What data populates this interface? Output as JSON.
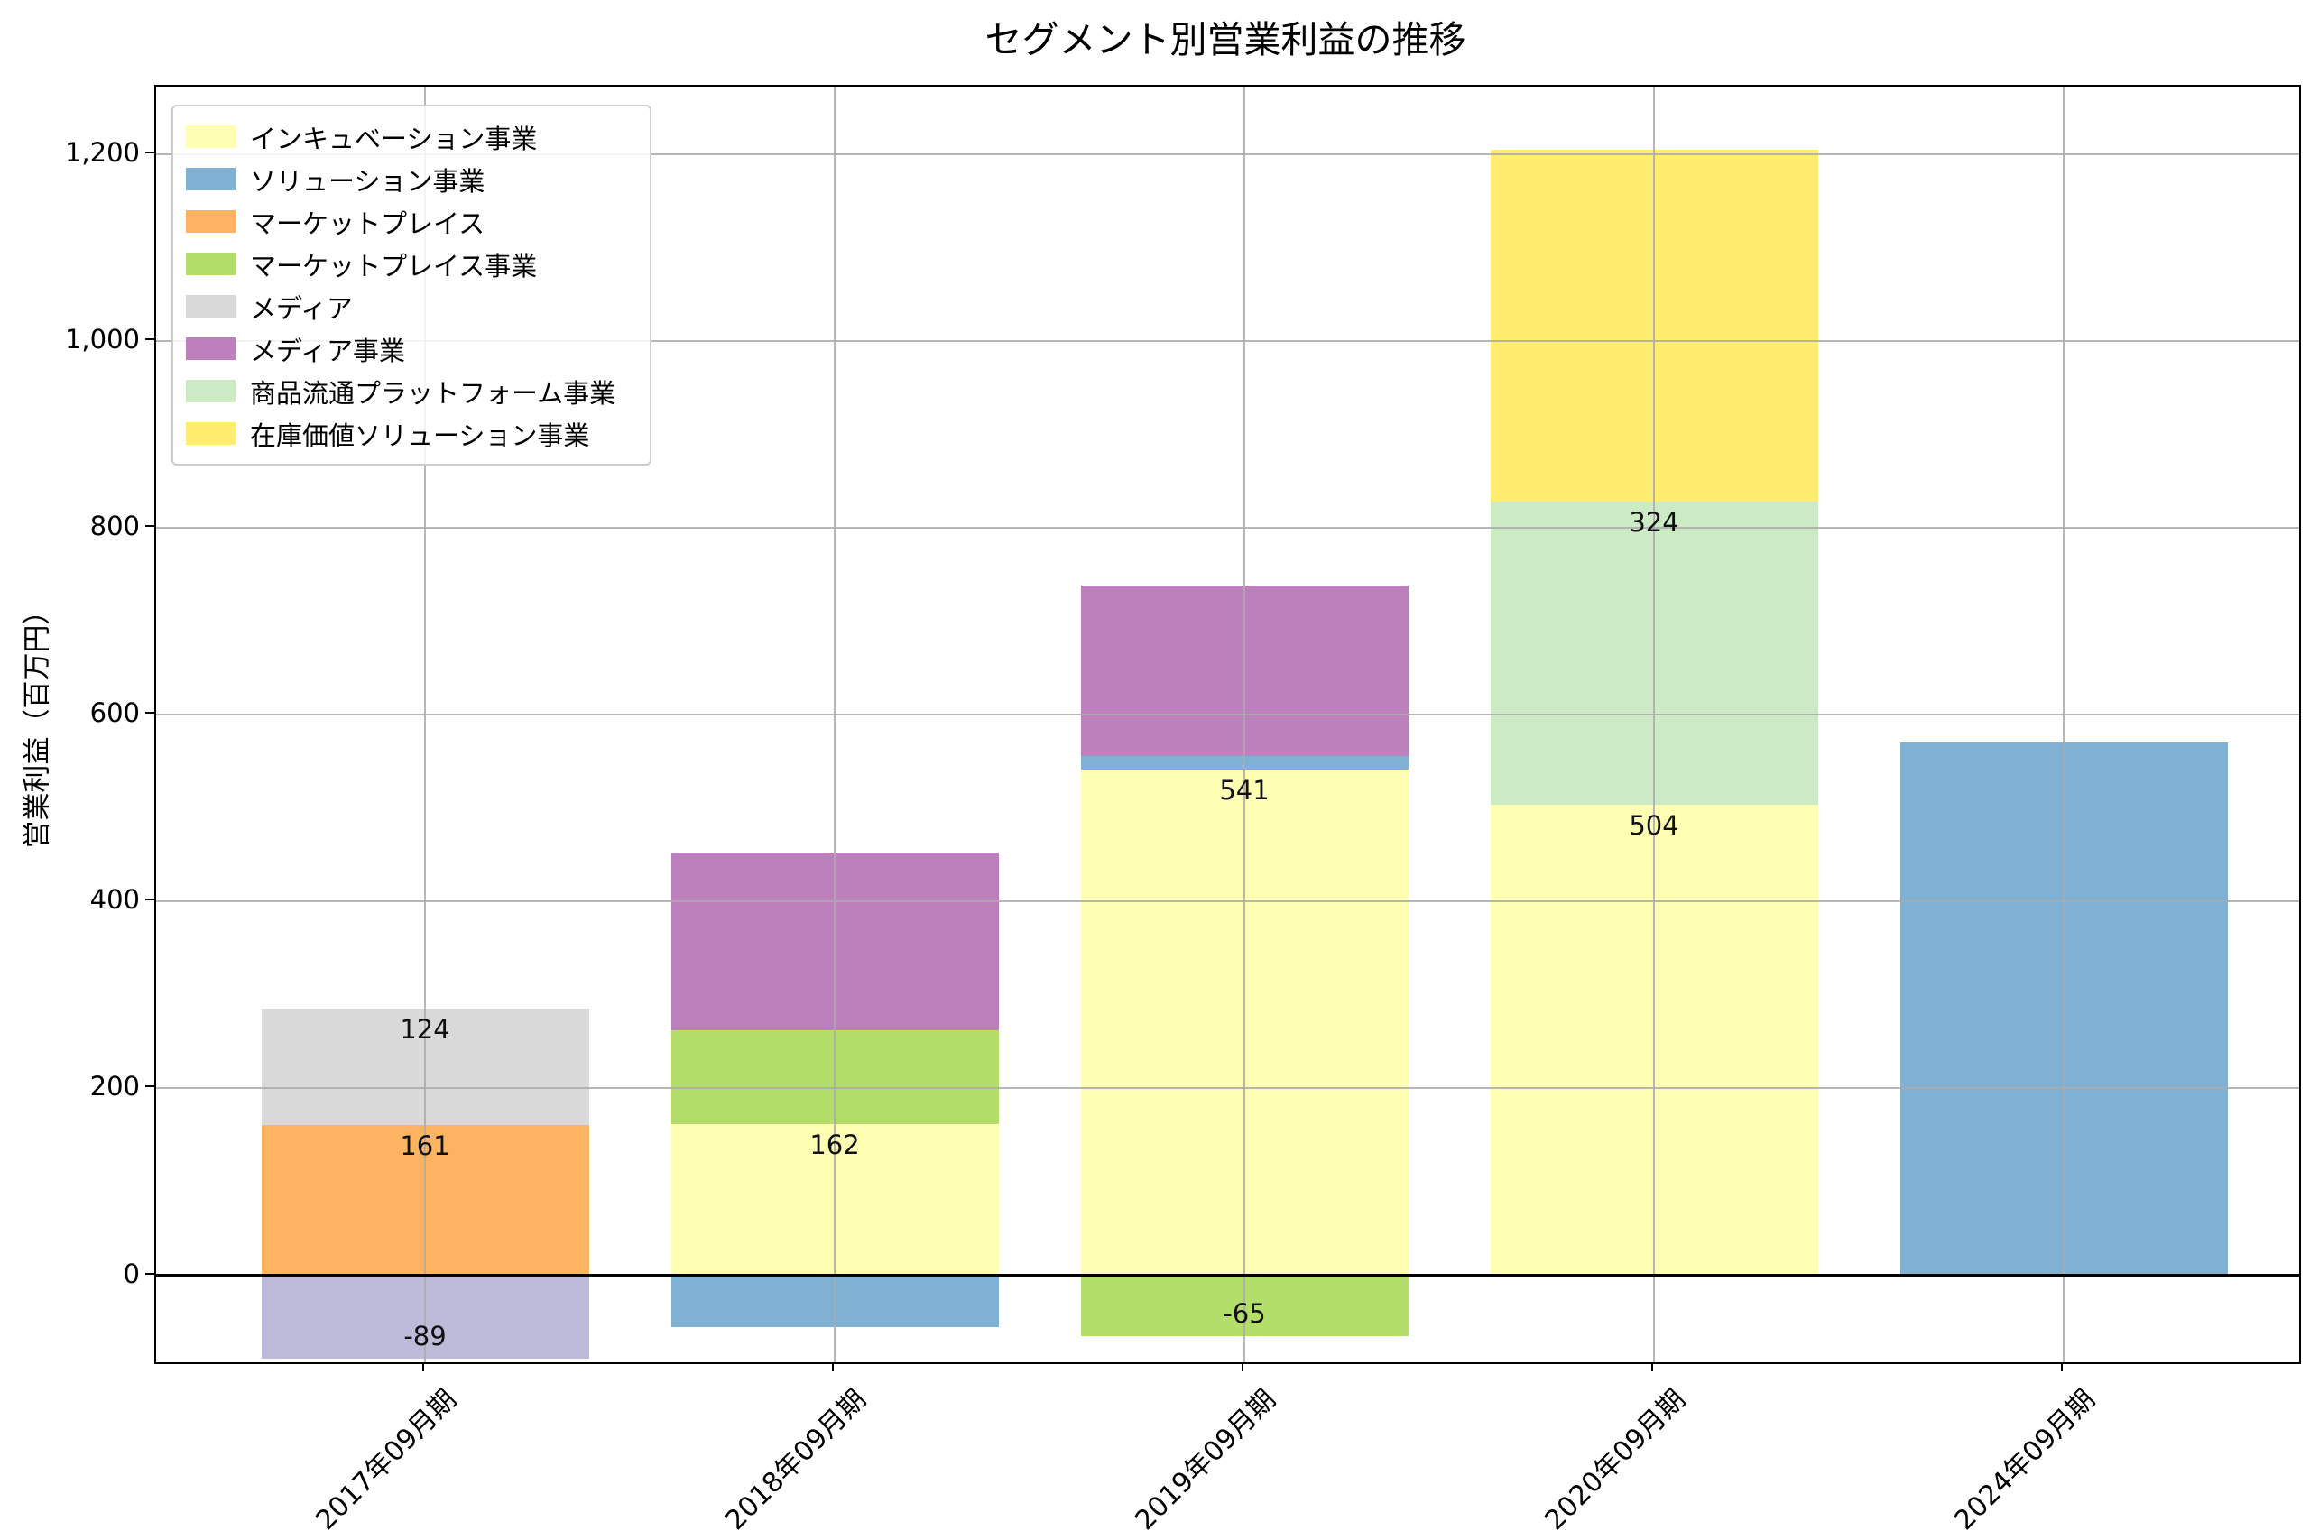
{
  "figure": {
    "title": "セグメント別営業利益の推移",
    "ylabel": "営業利益（百万円）",
    "background": "#ffffff"
  },
  "legend": {
    "items": [
      {
        "label": "インキュベーション事業",
        "color": "#ffffb3"
      },
      {
        "label": "ソリューション事業",
        "color": "#80b1d3"
      },
      {
        "label": "マーケットプレイス",
        "color": "#fdb462"
      },
      {
        "label": "マーケットプレイス事業",
        "color": "#b3de69"
      },
      {
        "label": "メディア",
        "color": "#d9d9d9"
      },
      {
        "label": "メディア事業",
        "color": "#bc80bd"
      },
      {
        "label": "商品流通プラットフォーム事業",
        "color": "#ccebc5"
      },
      {
        "label": "在庫価値ソリューション事業",
        "color": "#ffed6f"
      }
    ]
  },
  "chart_data": {
    "type": "bar",
    "stacked": true,
    "title": "セグメント別営業利益の推移",
    "xlabel": "",
    "ylabel": "営業利益（百万円）",
    "categories": [
      "2017年09月期",
      "2018年09月期",
      "2019年09月期",
      "2020年09月期",
      "2024年09月期"
    ],
    "yticks": {
      "values": [
        0,
        200,
        400,
        600,
        800,
        1000,
        1200
      ],
      "labels": [
        "0",
        "200",
        "400",
        "600",
        "800",
        "1,000",
        "1,200"
      ]
    },
    "ylim": [
      -93,
      1272
    ],
    "grid": true,
    "grid_color": "#aaaaaa",
    "legend_position": "upper left",
    "zero_line": true,
    "series": [
      {
        "name": "インキュベーション事業",
        "color": "#ffffb3",
        "values": [
          0,
          162,
          541,
          504,
          0
        ],
        "labels": [
          null,
          "162",
          "541",
          "504",
          null
        ]
      },
      {
        "name": "ソリューション事業",
        "color": "#80b1d3",
        "values": [
          0,
          -55,
          15,
          0,
          570
        ],
        "labels": [
          null,
          null,
          null,
          null,
          null
        ]
      },
      {
        "name": "マーケットプレイス",
        "color": "#fdb462",
        "values": [
          161,
          0,
          0,
          0,
          0
        ],
        "labels": [
          "161",
          null,
          null,
          null,
          null
        ]
      },
      {
        "name": "マーケットプレイス事業",
        "color": "#b3de69",
        "values": [
          0,
          100,
          -65,
          0,
          0
        ],
        "labels": [
          null,
          null,
          "-65",
          null,
          null
        ]
      },
      {
        "name": "メディア",
        "color": "#d9d9d9",
        "values": [
          124,
          0,
          0,
          0,
          0
        ],
        "labels": [
          "124",
          null,
          null,
          null,
          null
        ]
      },
      {
        "name": "メディア事業",
        "color": "#bc80bd",
        "values": [
          0,
          190,
          182,
          0,
          0
        ],
        "labels": [
          null,
          null,
          null,
          null,
          null
        ]
      },
      {
        "name": "商品流通プラットフォーム事業",
        "color": "#ccebc5",
        "values": [
          0,
          0,
          0,
          324,
          0
        ],
        "labels": [
          null,
          null,
          null,
          "324",
          null
        ]
      },
      {
        "name": "在庫価値ソリューション事業",
        "color": "#ffed6f",
        "values": [
          0,
          0,
          0,
          376,
          0
        ],
        "labels": [
          null,
          null,
          null,
          null,
          null
        ]
      },
      {
        "name": "",
        "color": "#bebada",
        "values": [
          -89,
          0,
          0,
          0,
          0
        ],
        "labels": [
          "-89",
          null,
          null,
          null,
          null
        ],
        "in_legend": false
      }
    ]
  }
}
